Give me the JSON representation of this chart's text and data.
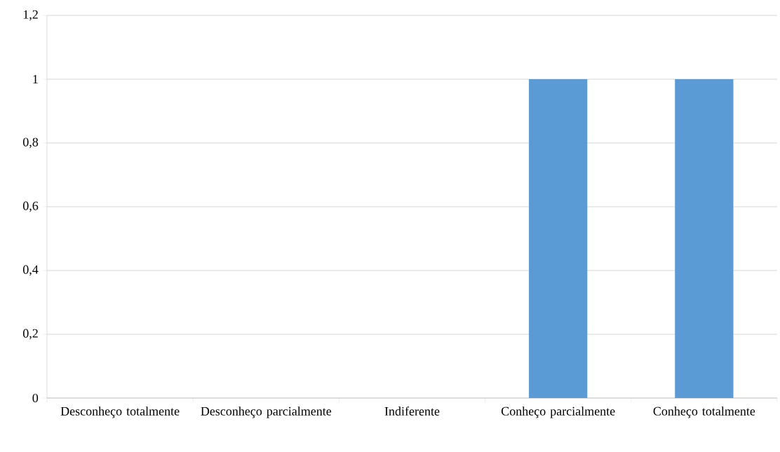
{
  "chart_data": {
    "type": "bar",
    "categories": [
      "Desconheço totalmente",
      "Desconheço parcialmente",
      "Indiferente",
      "Conheço parcialmente",
      "Conheço totalmente"
    ],
    "values": [
      0,
      0,
      0,
      1,
      1
    ],
    "color": "#5b9bd5",
    "ylim": [
      0,
      1.2
    ],
    "yticks": [
      0,
      {
        "value": 0.2,
        "label": "0,2"
      },
      {
        "value": 0.4,
        "label": "0,4"
      },
      {
        "value": 0.6,
        "label": "0,6"
      },
      {
        "value": 0.8,
        "label": "0,8"
      },
      1,
      {
        "value": 1.2,
        "label": "1,2"
      }
    ],
    "grid": "y"
  }
}
